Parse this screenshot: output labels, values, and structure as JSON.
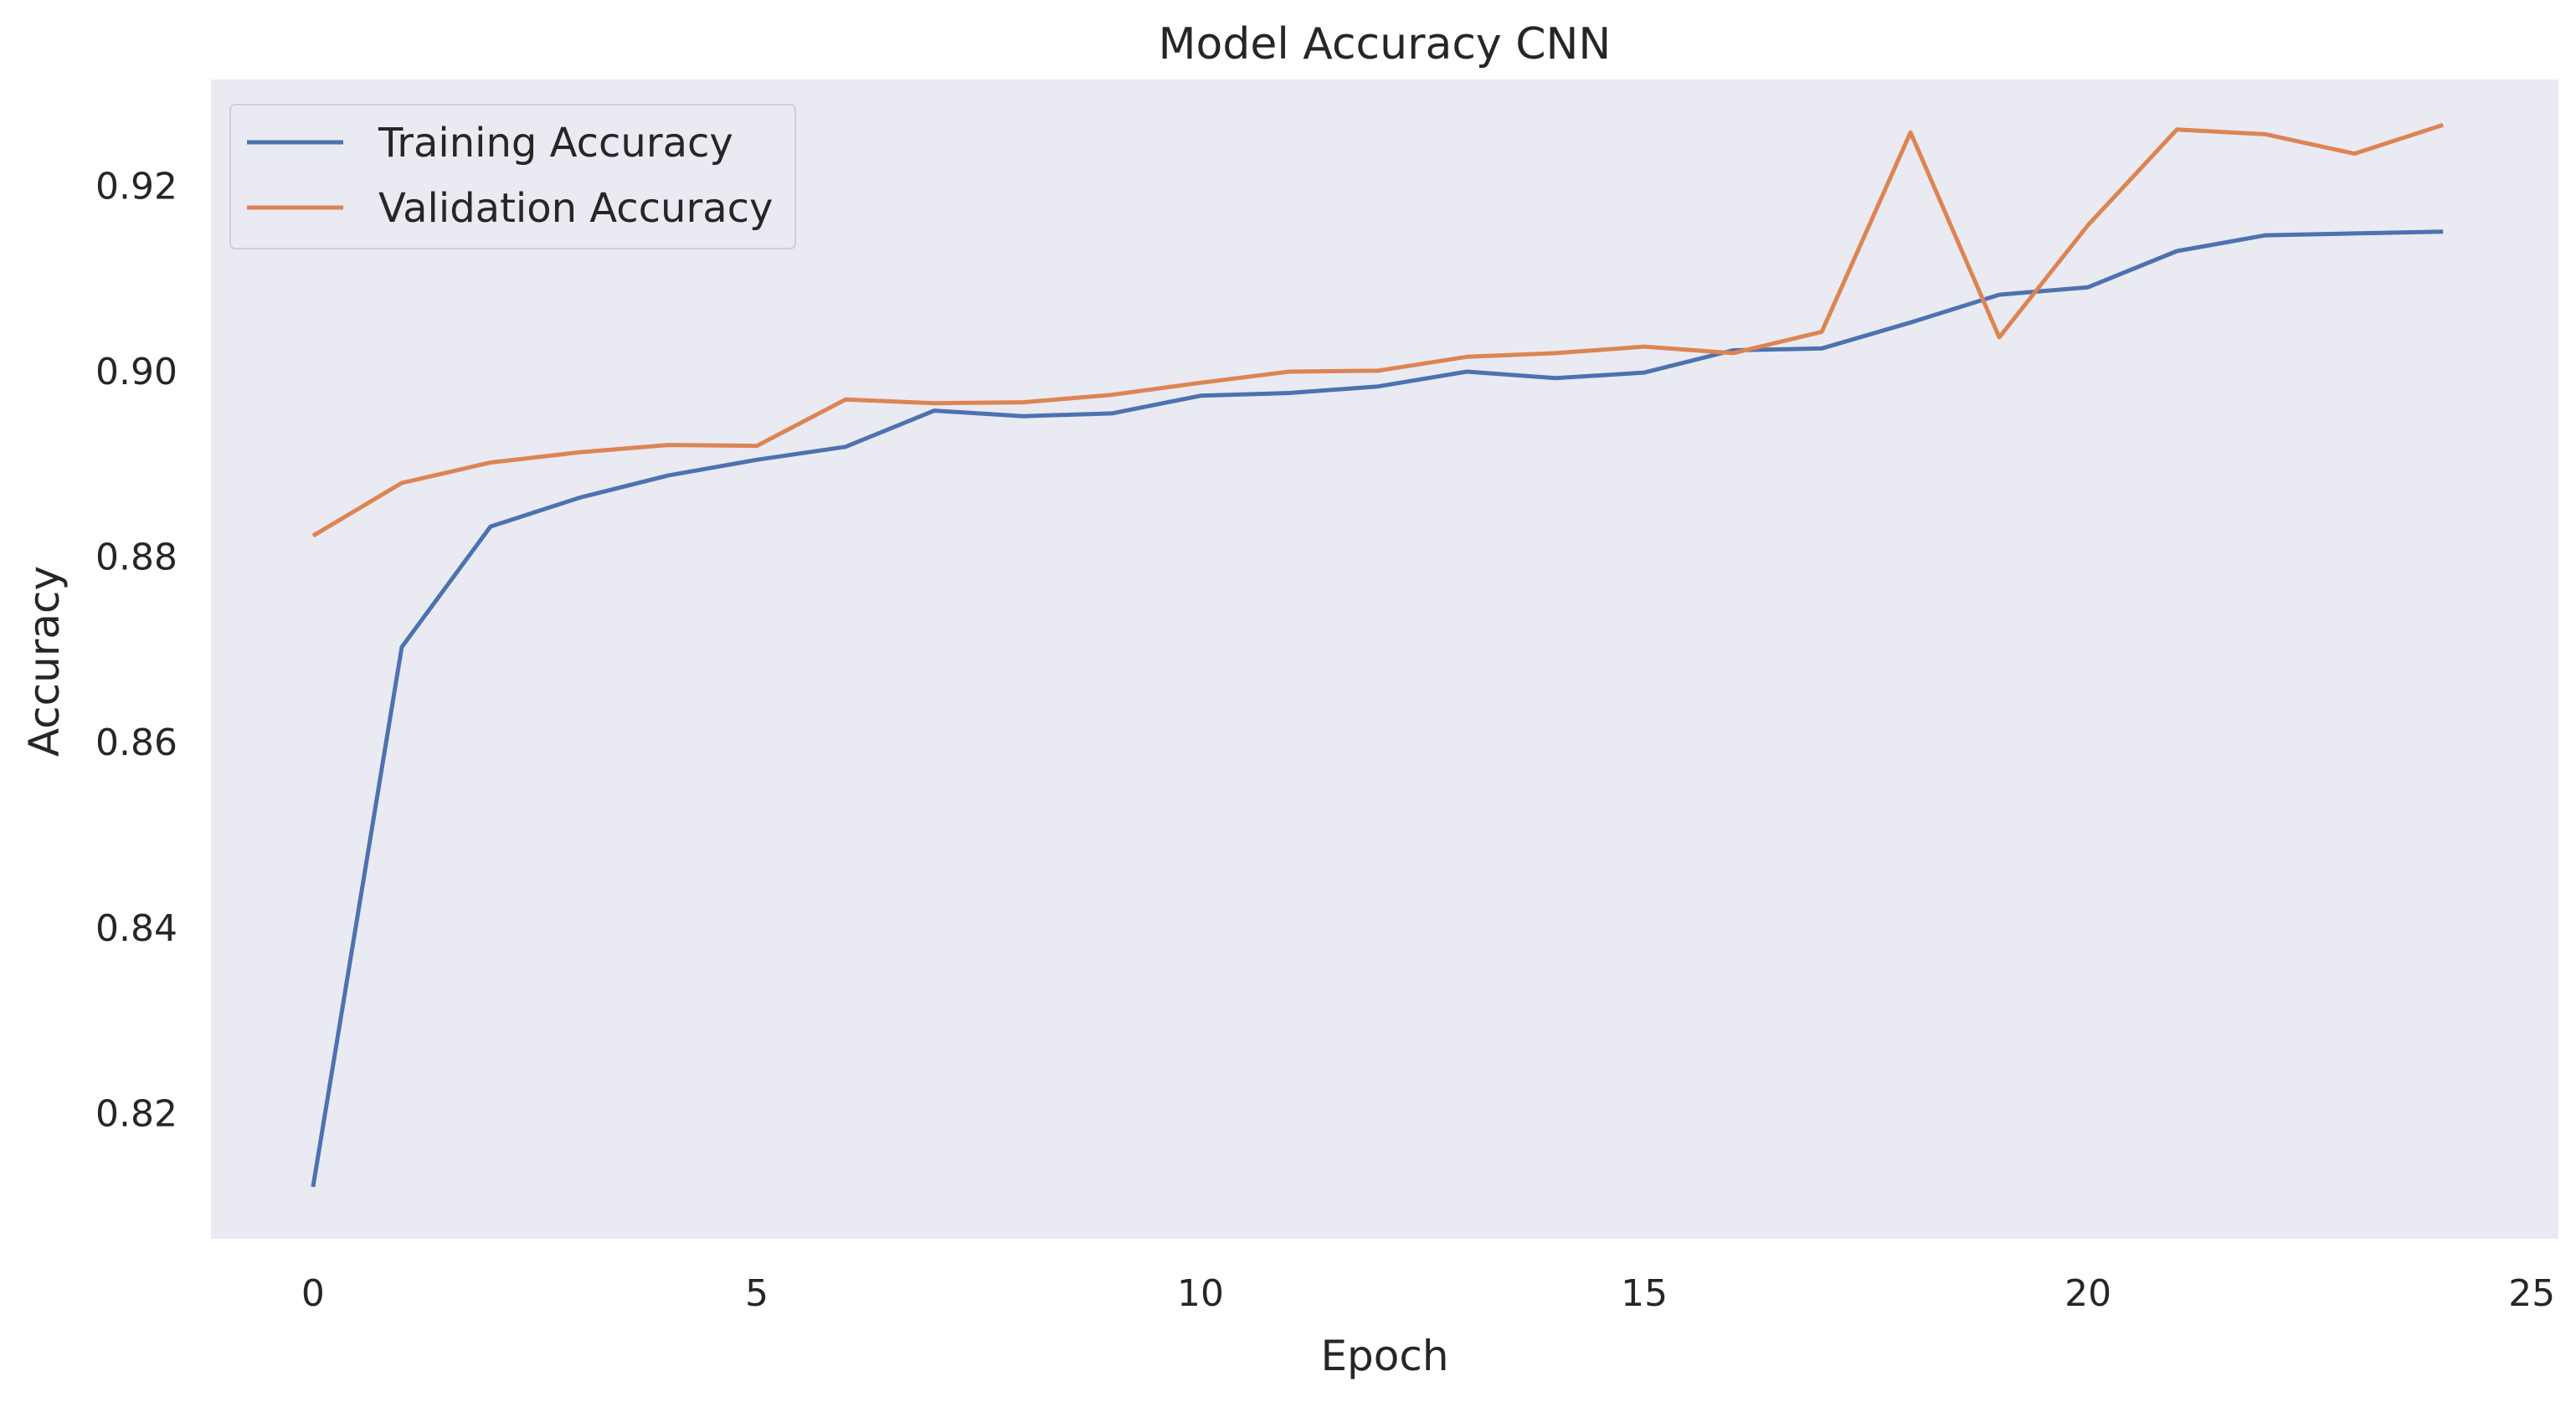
{
  "chart_data": {
    "type": "line",
    "title": "Model Accuracy CNN",
    "xlabel": "Epoch",
    "ylabel": "Accuracy",
    "xlim": [
      -1.15,
      25.3
    ],
    "ylim": [
      0.8065,
      0.9315
    ],
    "xticks": [
      0,
      5,
      10,
      15,
      20,
      25
    ],
    "yticks": [
      0.82,
      0.84,
      0.86,
      0.88,
      0.9,
      0.92
    ],
    "xtick_labels": [
      "0",
      "5",
      "10",
      "15",
      "20",
      "25"
    ],
    "ytick_labels": [
      "0.82",
      "0.84",
      "0.86",
      "0.88",
      "0.90",
      "0.92"
    ],
    "grid": false,
    "legend_position": "top-left",
    "background_color": "#EAEAF2",
    "x": [
      0,
      1,
      2,
      3,
      4,
      5,
      6,
      7,
      8,
      9,
      10,
      11,
      12,
      13,
      14,
      15,
      16,
      17,
      18,
      19,
      20,
      21,
      22,
      23,
      24
    ],
    "series": [
      {
        "name": "Training Accuracy",
        "color": "#4C72B0",
        "values": [
          0.8121,
          0.8703,
          0.8833,
          0.8864,
          0.8888,
          0.8905,
          0.8919,
          0.8958,
          0.8952,
          0.8955,
          0.8974,
          0.8977,
          0.8984,
          0.9,
          0.8993,
          0.8999,
          0.9023,
          0.9025,
          0.9053,
          0.9083,
          0.9091,
          0.913,
          0.9147,
          0.9149,
          0.9151
        ]
      },
      {
        "name": "Validation Accuracy",
        "color": "#DD8452",
        "values": [
          0.8823,
          0.888,
          0.8902,
          0.8913,
          0.8921,
          0.892,
          0.897,
          0.8966,
          0.8967,
          0.8975,
          0.8988,
          0.9,
          0.9001,
          0.9016,
          0.902,
          0.9027,
          0.902,
          0.9043,
          0.9258,
          0.9037,
          0.9158,
          0.9261,
          0.9256,
          0.9235,
          0.9266
        ]
      }
    ]
  }
}
